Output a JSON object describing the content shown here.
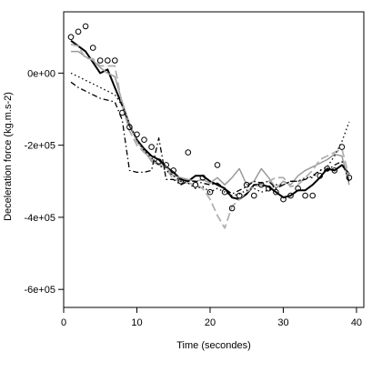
{
  "chart_data": {
    "type": "line",
    "title": "",
    "xlabel": "Time (secondes)",
    "ylabel": "Deceleration force (kg.m.s-2)",
    "xlim": [
      0,
      41
    ],
    "ylim": [
      -650000,
      170000
    ],
    "x_ticks": [
      {
        "value": 0,
        "label": "0"
      },
      {
        "value": 10,
        "label": "10"
      },
      {
        "value": 20,
        "label": "20"
      },
      {
        "value": 30,
        "label": "30"
      },
      {
        "value": 40,
        "label": "40"
      }
    ],
    "y_ticks": [
      {
        "value": 0,
        "label": "0e+00"
      },
      {
        "value": -200000,
        "label": "-2e+05"
      },
      {
        "value": -400000,
        "label": "-4e+05"
      },
      {
        "value": -600000,
        "label": "-6e+05"
      }
    ],
    "grid": false,
    "legend": "none",
    "points": {
      "x": [
        1,
        2,
        3,
        4,
        5,
        6,
        7,
        8,
        9,
        10,
        11,
        12,
        13,
        14,
        15,
        16,
        17,
        18,
        19,
        20,
        21,
        22,
        23,
        24,
        25,
        26,
        27,
        28,
        29,
        30,
        31,
        32,
        33,
        34,
        35,
        36,
        37,
        38,
        39
      ],
      "y": [
        100000,
        115000,
        130000,
        70000,
        35000,
        35000,
        35000,
        -110000,
        -150000,
        -170000,
        -185000,
        -205000,
        -245000,
        -255000,
        -270000,
        -300000,
        -220000,
        -310000,
        -290000,
        -330000,
        -255000,
        -330000,
        -375000,
        -340000,
        -310000,
        -340000,
        -310000,
        -320000,
        -330000,
        -350000,
        -340000,
        -320000,
        -340000,
        -340000,
        -285000,
        -265000,
        -270000,
        -205000,
        -290000
      ]
    },
    "series": [
      {
        "style": "solid",
        "color": "#000000",
        "width": 2,
        "x": [
          1,
          3,
          5,
          6,
          7,
          8,
          9,
          10,
          11,
          12,
          13,
          14,
          15,
          16,
          17,
          18,
          19,
          20,
          21,
          22,
          23,
          24,
          25,
          26,
          27,
          28,
          29,
          30,
          31,
          32,
          33,
          34,
          35,
          36,
          37,
          38,
          39
        ],
        "y": [
          90000,
          60000,
          0,
          10000,
          -40000,
          -90000,
          -145000,
          -185000,
          -210000,
          -230000,
          -240000,
          -260000,
          -275000,
          -295000,
          -300000,
          -285000,
          -285000,
          -300000,
          -310000,
          -320000,
          -345000,
          -350000,
          -335000,
          -310000,
          -310000,
          -315000,
          -330000,
          -345000,
          -340000,
          -325000,
          -325000,
          -310000,
          -290000,
          -265000,
          -270000,
          -255000,
          -280000
        ]
      },
      {
        "style": "solid",
        "color": "#9a9a9a",
        "width": 1.5,
        "x": [
          1,
          2,
          3,
          4,
          5,
          6,
          7,
          8,
          9,
          10,
          11,
          12,
          13,
          14,
          15,
          16,
          17,
          18,
          19,
          20,
          21,
          22,
          23,
          24,
          25,
          26,
          27,
          28,
          29,
          30,
          31,
          32,
          33,
          34,
          35,
          36,
          37,
          38,
          39
        ],
        "y": [
          60000,
          60000,
          45000,
          35000,
          15000,
          0,
          -10000,
          -80000,
          -140000,
          -190000,
          -215000,
          -245000,
          -255000,
          -260000,
          -285000,
          -290000,
          -295000,
          -300000,
          -295000,
          -305000,
          -290000,
          -310000,
          -290000,
          -265000,
          -310000,
          -300000,
          -265000,
          -290000,
          -320000,
          -300000,
          -310000,
          -285000,
          -270000,
          -260000,
          -250000,
          -240000,
          -225000,
          -230000,
          -310000
        ]
      },
      {
        "style": "dashed",
        "color": "#b0b0b0",
        "width": 1.8,
        "x": [
          1,
          2,
          3,
          4,
          5,
          6,
          7,
          8,
          9,
          10,
          11,
          12,
          13,
          14,
          15,
          16,
          17,
          18,
          19,
          20,
          21,
          22,
          23,
          24,
          25,
          26,
          27,
          28,
          29,
          30,
          31,
          32,
          33,
          34,
          35,
          36,
          37,
          38,
          39
        ],
        "y": [
          80000,
          75000,
          40000,
          40000,
          20000,
          20000,
          20000,
          -90000,
          -160000,
          -200000,
          -220000,
          -240000,
          -250000,
          -265000,
          -295000,
          -300000,
          -305000,
          -310000,
          -320000,
          -350000,
          -395000,
          -430000,
          -370000,
          -350000,
          -330000,
          -315000,
          -310000,
          -300000,
          -290000,
          -290000,
          -315000,
          -310000,
          -290000,
          -270000,
          -240000,
          -230000,
          -220000,
          -210000,
          -290000
        ]
      },
      {
        "style": "dotted",
        "color": "#000000",
        "width": 1.3,
        "x": [
          1,
          2,
          3,
          4,
          5,
          6,
          7,
          8,
          9,
          10,
          11,
          12,
          13,
          14,
          15,
          16,
          17,
          18,
          19,
          20,
          21,
          22,
          23,
          24,
          25,
          26,
          27,
          28,
          29,
          30,
          31,
          32,
          33,
          34,
          35,
          36,
          37,
          38,
          39
        ],
        "y": [
          0,
          -10000,
          -20000,
          -30000,
          -40000,
          -50000,
          -60000,
          -90000,
          -140000,
          -185000,
          -215000,
          -235000,
          -255000,
          -270000,
          -285000,
          -300000,
          -305000,
          -320000,
          -315000,
          -330000,
          -320000,
          -330000,
          -340000,
          -335000,
          -325000,
          -320000,
          -330000,
          -325000,
          -310000,
          -310000,
          -300000,
          -300000,
          -290000,
          -290000,
          -270000,
          -260000,
          -230000,
          -190000,
          -135000
        ]
      },
      {
        "style": "longdash",
        "color": "#000000",
        "width": 1.3,
        "x": [
          1,
          2,
          3,
          4,
          5,
          6,
          7,
          8,
          9,
          10,
          11,
          12,
          13,
          14,
          15,
          16,
          17,
          18,
          19,
          20,
          21,
          22,
          23,
          24,
          25,
          26,
          27,
          28,
          29,
          30,
          31,
          32,
          33,
          34,
          35,
          36,
          37,
          38,
          39
        ],
        "y": [
          -25000,
          -40000,
          -50000,
          -60000,
          -70000,
          -75000,
          -80000,
          -130000,
          -270000,
          -275000,
          -275000,
          -270000,
          -180000,
          -295000,
          -295000,
          -310000,
          -300000,
          -300000,
          -305000,
          -310000,
          -305000,
          -320000,
          -335000,
          -325000,
          -315000,
          -300000,
          -305000,
          -300000,
          -320000,
          -310000,
          -300000,
          -300000,
          -295000,
          -285000,
          -270000,
          -270000,
          -255000,
          -245000,
          -300000
        ]
      }
    ]
  }
}
